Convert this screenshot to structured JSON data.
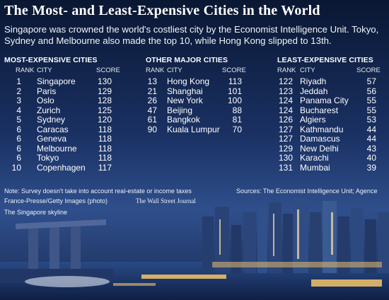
{
  "title": "The Most- and Least-Expensive Cities in the World",
  "subtitle": "Singapore was crowned the world's costliest city by the Economist Intelligence Unit. Tokyo, Sydney and Melbourne also made the top 10, while Hong Kong slipped to 13th.",
  "columns_header": {
    "rank": "RANK",
    "city": "CITY",
    "score": "SCORE"
  },
  "sections": [
    {
      "heading": "MOST-EXPENSIVE CITIES",
      "rows": [
        {
          "rank": "1",
          "city": "Singapore",
          "score": "130"
        },
        {
          "rank": "2",
          "city": "Paris",
          "score": "129"
        },
        {
          "rank": "3",
          "city": "Oslo",
          "score": "128"
        },
        {
          "rank": "4",
          "city": "Zurich",
          "score": "125"
        },
        {
          "rank": "5",
          "city": "Sydney",
          "score": "120"
        },
        {
          "rank": "6",
          "city": "Caracas",
          "score": "118"
        },
        {
          "rank": "6",
          "city": "Geneva",
          "score": "118"
        },
        {
          "rank": "6",
          "city": "Melbourne",
          "score": "118"
        },
        {
          "rank": "6",
          "city": "Tokyo",
          "score": "118"
        },
        {
          "rank": "10",
          "city": "Copenhagen",
          "score": "117"
        }
      ]
    },
    {
      "heading": "OTHER MAJOR CITIES",
      "rows": [
        {
          "rank": "13",
          "city": "Hong Kong",
          "score": "113"
        },
        {
          "rank": "21",
          "city": "Shanghai",
          "score": "101"
        },
        {
          "rank": "26",
          "city": "New York",
          "score": "100"
        },
        {
          "rank": "47",
          "city": "Beijing",
          "score": "88"
        },
        {
          "rank": "61",
          "city": "Bangkok",
          "score": "81"
        },
        {
          "rank": "90",
          "city": "Kuala Lumpur",
          "score": "70"
        }
      ]
    },
    {
      "heading": "LEAST-EXPENSIVE CITIES",
      "rows": [
        {
          "rank": "122",
          "city": "Riyadh",
          "score": "57"
        },
        {
          "rank": "123",
          "city": "Jeddah",
          "score": "56"
        },
        {
          "rank": "124",
          "city": "Panama City",
          "score": "55"
        },
        {
          "rank": "124",
          "city": "Bucharest",
          "score": "55"
        },
        {
          "rank": "126",
          "city": "Algiers",
          "score": "53"
        },
        {
          "rank": "127",
          "city": "Kathmandu",
          "score": "44"
        },
        {
          "rank": "127",
          "city": "Damascus",
          "score": "44"
        },
        {
          "rank": "129",
          "city": "New Delhi",
          "score": "43"
        },
        {
          "rank": "130",
          "city": "Karachi",
          "score": "40"
        },
        {
          "rank": "131",
          "city": "Mumbai",
          "score": "39"
        }
      ]
    }
  ],
  "footer": {
    "note": "Note: Survey doesn't take into account real-estate or income taxes",
    "credit": "France-Presse/Getty Images (photo)",
    "publisher": "The Wall Street Journal",
    "caption": "The Singapore skyline",
    "sources": "Sources: The Economist Intelligence Unit; Agence"
  },
  "colors": {
    "sky_top": "#0a1733",
    "sky_mid": "#2b4a86",
    "city_glow": "#f4c46a"
  }
}
